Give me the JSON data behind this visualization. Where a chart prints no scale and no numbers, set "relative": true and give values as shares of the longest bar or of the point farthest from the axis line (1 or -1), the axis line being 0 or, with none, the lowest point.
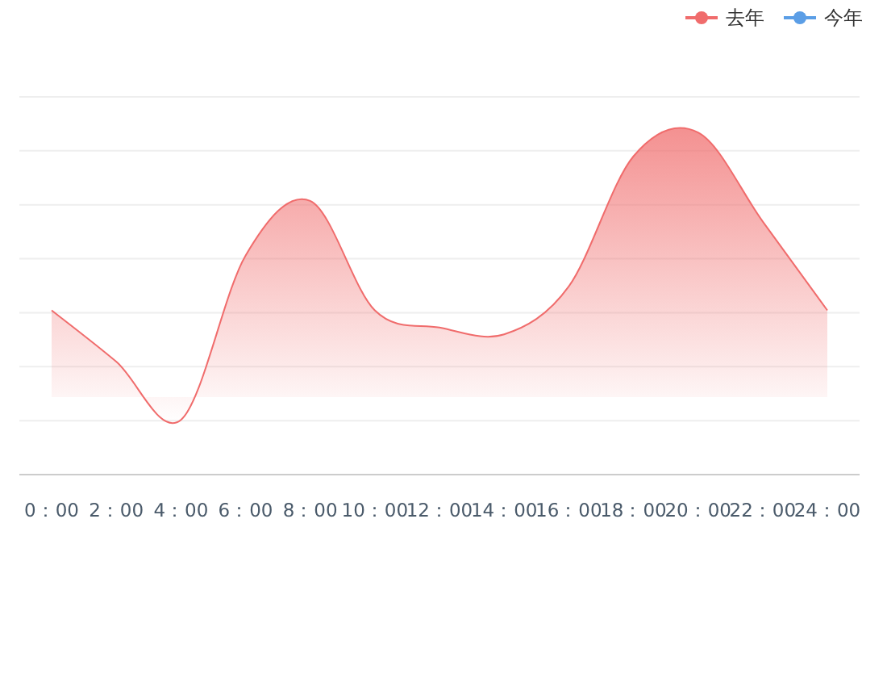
{
  "chart_data": {
    "type": "area",
    "relative": true,
    "grid": "y",
    "legend": "top right",
    "line_style": "solid",
    "marker": "none",
    "categories": [
      "0：00",
      "2：00",
      "4：00",
      "6：00",
      "8：00",
      "10：00",
      "12：00",
      "14：00",
      "16：00",
      "18：00",
      "20：00",
      "22：00",
      "24：00"
    ],
    "series": [
      {
        "name": "去年",
        "color": "#f06c6c",
        "values": [
          0.48,
          0.33,
          0.16,
          0.64,
          0.8,
          0.48,
          0.43,
          0.41,
          0.55,
          0.93,
          1,
          0.74,
          0.48
        ]
      },
      {
        "name": "今年",
        "color": "#5b9ee6",
        "values": [
          null,
          null,
          null,
          null,
          null,
          null,
          null,
          null,
          null,
          null,
          null,
          null,
          null
        ]
      }
    ]
  }
}
